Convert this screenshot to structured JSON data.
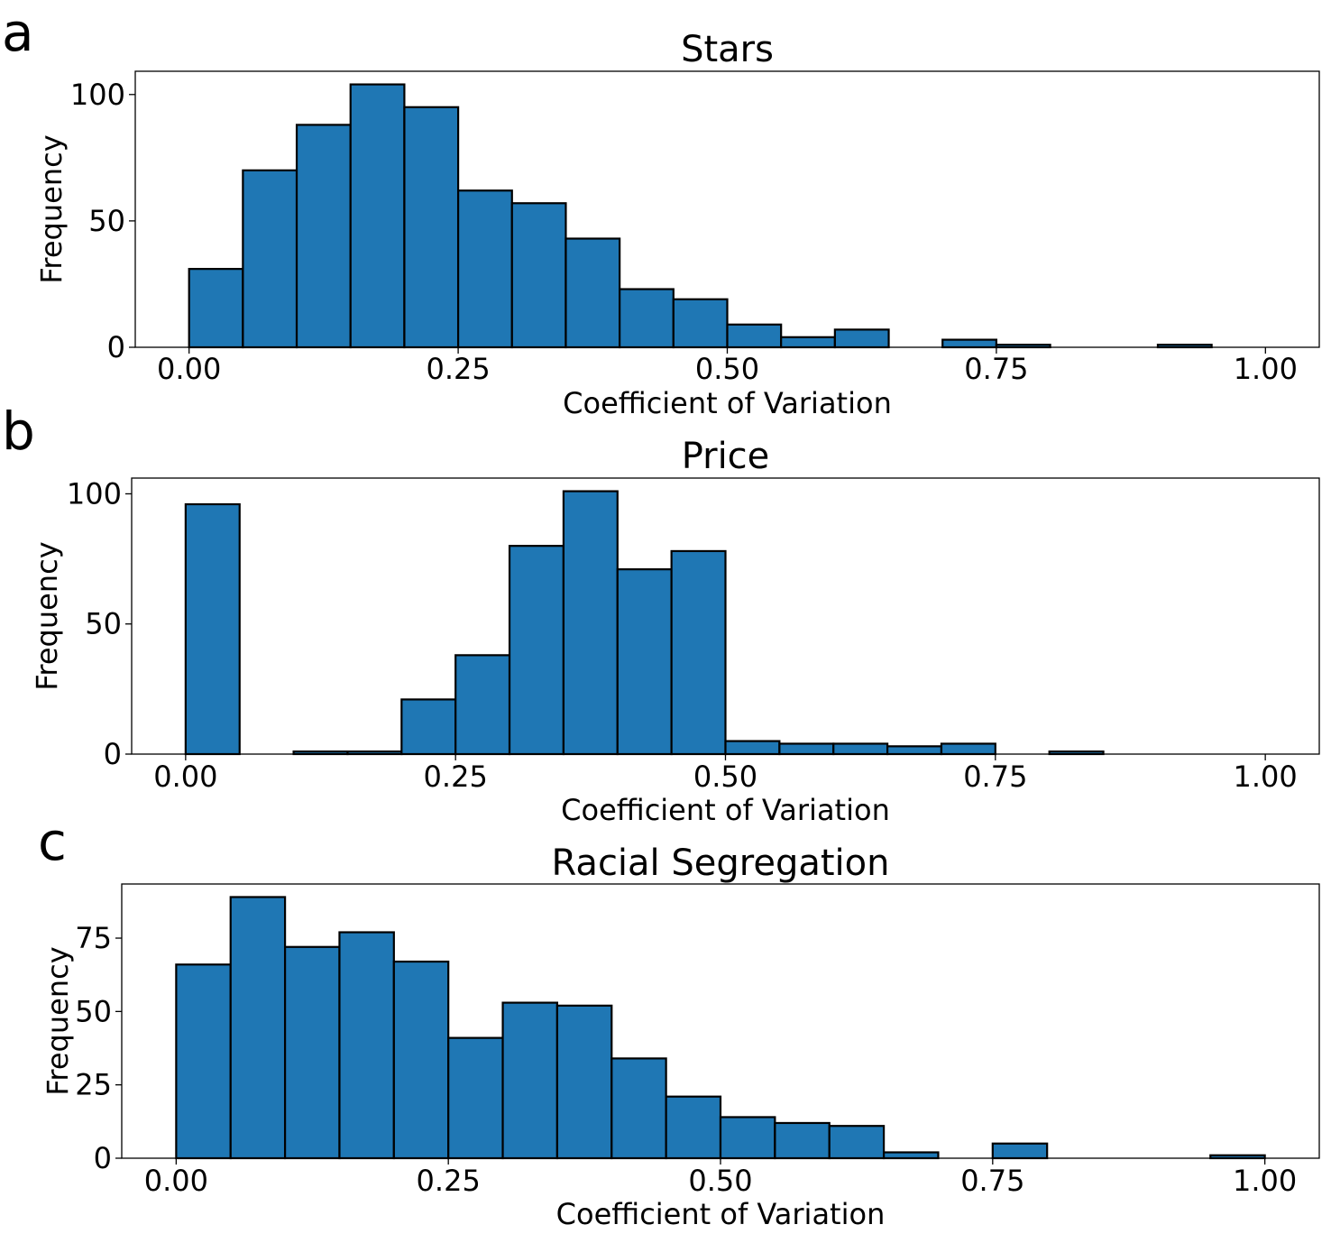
{
  "chart_data": [
    {
      "panel_letter": "a",
      "type": "bar",
      "title": "Stars",
      "xlabel": "Coefficient of Variation",
      "ylabel": "Frequency",
      "bin_edges": [
        0.0,
        0.05,
        0.1,
        0.15,
        0.2,
        0.25,
        0.3,
        0.35,
        0.4,
        0.45,
        0.5,
        0.55,
        0.6,
        0.65,
        0.7,
        0.75,
        0.8,
        0.85,
        0.9,
        0.95,
        1.0
      ],
      "values": [
        31,
        70,
        88,
        104,
        95,
        62,
        57,
        43,
        23,
        19,
        9,
        4,
        7,
        0,
        3,
        1,
        0,
        0,
        1,
        0
      ],
      "xlim": [
        -0.05,
        1.05
      ],
      "ylim": [
        0,
        109.2
      ],
      "xticks": [
        0.0,
        0.25,
        0.5,
        0.75,
        1.0
      ],
      "xtick_labels": [
        "0.00",
        "0.25",
        "0.50",
        "0.75",
        "1.00"
      ],
      "yticks": [
        0,
        50,
        100
      ],
      "ytick_labels": [
        "0",
        "50",
        "100"
      ],
      "bar_color": "#1f77b4"
    },
    {
      "panel_letter": "b",
      "type": "bar",
      "title": "Price",
      "xlabel": "Coefficient of Variation",
      "ylabel": "Frequency",
      "bin_edges": [
        0.0,
        0.05,
        0.1,
        0.15,
        0.2,
        0.25,
        0.3,
        0.35,
        0.4,
        0.45,
        0.5,
        0.55,
        0.6,
        0.65,
        0.7,
        0.75,
        0.8,
        0.85,
        0.9,
        0.95,
        1.0
      ],
      "values": [
        96,
        0,
        1,
        1,
        21,
        38,
        80,
        101,
        71,
        78,
        5,
        4,
        4,
        3,
        4,
        0,
        1,
        0,
        0,
        0
      ],
      "xlim": [
        -0.05,
        1.05
      ],
      "ylim": [
        0,
        106.05
      ],
      "xticks": [
        0.0,
        0.25,
        0.5,
        0.75,
        1.0
      ],
      "xtick_labels": [
        "0.00",
        "0.25",
        "0.50",
        "0.75",
        "1.00"
      ],
      "yticks": [
        0,
        50,
        100
      ],
      "ytick_labels": [
        "0",
        "50",
        "100"
      ],
      "bar_color": "#1f77b4"
    },
    {
      "panel_letter": "c",
      "type": "bar",
      "title": "Racial Segregation",
      "xlabel": "Coefficient of Variation",
      "ylabel": "Frequency",
      "bin_edges": [
        0.0,
        0.05,
        0.1,
        0.15,
        0.2,
        0.25,
        0.3,
        0.35,
        0.4,
        0.45,
        0.5,
        0.55,
        0.6,
        0.65,
        0.7,
        0.75,
        0.8,
        0.85,
        0.9,
        0.95,
        1.0
      ],
      "values": [
        66,
        89,
        72,
        77,
        67,
        41,
        53,
        52,
        34,
        21,
        14,
        12,
        11,
        2,
        0,
        5,
        0,
        0,
        0,
        1
      ],
      "xlim": [
        -0.05,
        1.05
      ],
      "ylim": [
        0,
        93.45
      ],
      "xticks": [
        0.0,
        0.25,
        0.5,
        0.75,
        1.0
      ],
      "xtick_labels": [
        "0.00",
        "0.25",
        "0.50",
        "0.75",
        "1.00"
      ],
      "yticks": [
        0,
        25,
        50,
        75
      ],
      "ytick_labels": [
        "0",
        "25",
        "50",
        "75"
      ],
      "bar_color": "#1f77b4"
    }
  ]
}
